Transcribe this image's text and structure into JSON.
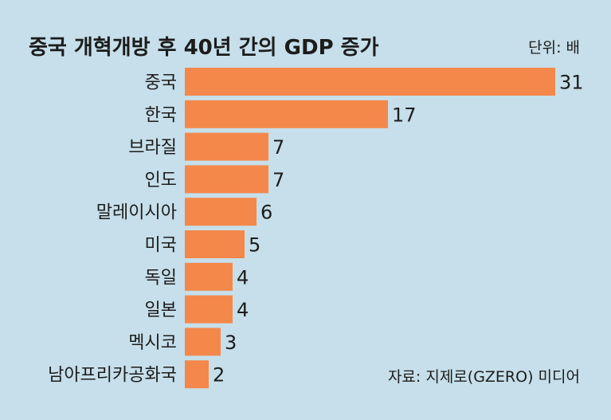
{
  "chart_data": {
    "type": "bar",
    "orientation": "horizontal",
    "title": "중국 개혁개방 후 40년 간의 GDP 증가",
    "unit_label": "단위: 배",
    "source": "자료: 지제로(GZERO) 미디어",
    "categories": [
      "중국",
      "한국",
      "브라질",
      "인도",
      "말레이시아",
      "미국",
      "독일",
      "일본",
      "멕시코",
      "남아프리카공화국"
    ],
    "values": [
      31,
      17,
      7,
      7,
      6,
      5,
      4,
      4,
      3,
      2
    ],
    "value_labels": [
      "31",
      "17",
      "7",
      "7",
      "6",
      "5",
      "4",
      "4",
      "3",
      "2"
    ],
    "xlim": [
      0,
      31
    ],
    "grid": false,
    "legend": "none"
  },
  "colors": {
    "background": "#c6dfea",
    "bar": "#f4884a",
    "text": "#1c1c1c"
  }
}
